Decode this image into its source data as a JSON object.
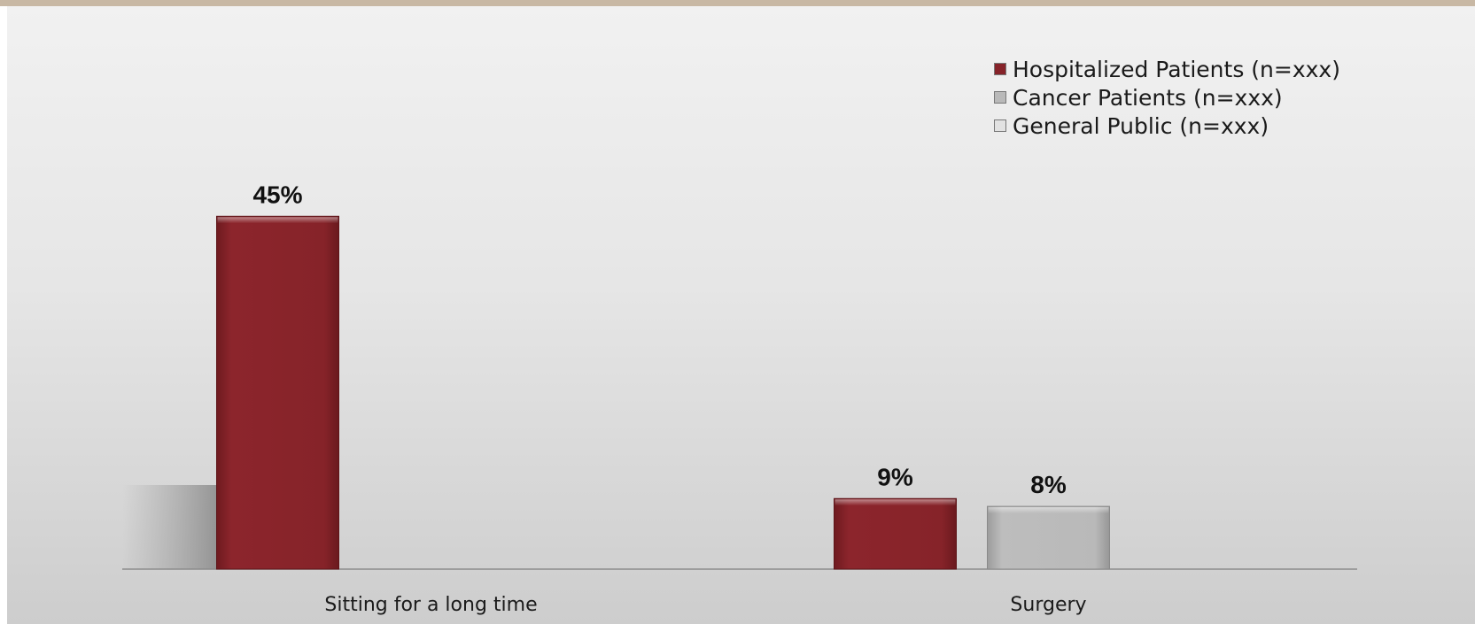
{
  "chart_data": {
    "type": "bar",
    "categories": [
      "Sitting for a long time",
      "Surgery"
    ],
    "series": [
      {
        "name": "Hospitalized Patients (n=xxx)",
        "color": "#862329",
        "values": [
          45,
          9
        ],
        "labels": [
          "45%",
          "9%"
        ]
      },
      {
        "name": "Cancer Patients (n=xxx)",
        "color": "#b9b9b9",
        "values": [
          null,
          8
        ],
        "labels": [
          "",
          "8%"
        ]
      },
      {
        "name": "General Public (n=xxx)",
        "color": "#e2e2e2",
        "values": [
          null,
          null
        ],
        "labels": [
          "",
          ""
        ]
      }
    ],
    "ylim": [
      0,
      50
    ],
    "legend": "top-right",
    "grid": false
  }
}
